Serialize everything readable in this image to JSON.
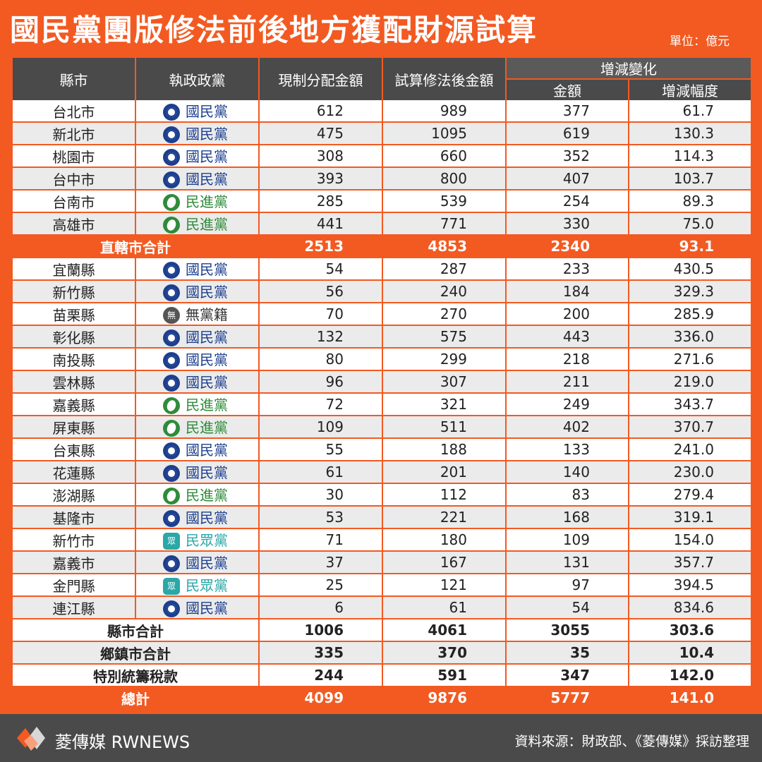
{
  "title": "國民黨團版修法前後地方獲配財源試算",
  "unit": "單位：億元",
  "headers": {
    "city": "縣市",
    "party": "執政政黨",
    "current": "現制分配金額",
    "after": "試算修法後金額",
    "change_group": "增減變化",
    "amount": "金額",
    "pct": "增減幅度"
  },
  "colors": {
    "orange": "#f25a22",
    "dark": "#4a4a4a",
    "kmt": "#1c3f8f",
    "dpp": "#2e8b3a",
    "tpp": "#2aa7a7",
    "ind": "#555555"
  },
  "municipalities": [
    {
      "name": "台北市",
      "party": "國民黨",
      "ptype": "kmt",
      "current": "612",
      "after": "989",
      "amount": "377",
      "pct": "61.7"
    },
    {
      "name": "新北市",
      "party": "國民黨",
      "ptype": "kmt",
      "current": "475",
      "after": "1095",
      "amount": "619",
      "pct": "130.3"
    },
    {
      "name": "桃園市",
      "party": "國民黨",
      "ptype": "kmt",
      "current": "308",
      "after": "660",
      "amount": "352",
      "pct": "114.3"
    },
    {
      "name": "台中市",
      "party": "國民黨",
      "ptype": "kmt",
      "current": "393",
      "after": "800",
      "amount": "407",
      "pct": "103.7"
    },
    {
      "name": "台南市",
      "party": "民進黨",
      "ptype": "dpp",
      "current": "285",
      "after": "539",
      "amount": "254",
      "pct": "89.3"
    },
    {
      "name": "高雄市",
      "party": "民進黨",
      "ptype": "dpp",
      "current": "441",
      "after": "771",
      "amount": "330",
      "pct": "75.0"
    }
  ],
  "municipal_total": {
    "label": "直轄市合計",
    "current": "2513",
    "after": "4853",
    "amount": "2340",
    "pct": "93.1"
  },
  "counties": [
    {
      "name": "宜蘭縣",
      "party": "國民黨",
      "ptype": "kmt",
      "current": "54",
      "after": "287",
      "amount": "233",
      "pct": "430.5"
    },
    {
      "name": "新竹縣",
      "party": "國民黨",
      "ptype": "kmt",
      "current": "56",
      "after": "240",
      "amount": "184",
      "pct": "329.3"
    },
    {
      "name": "苗栗縣",
      "party": "無黨籍",
      "ptype": "ind",
      "current": "70",
      "after": "270",
      "amount": "200",
      "pct": "285.9"
    },
    {
      "name": "彰化縣",
      "party": "國民黨",
      "ptype": "kmt",
      "current": "132",
      "after": "575",
      "amount": "443",
      "pct": "336.0"
    },
    {
      "name": "南投縣",
      "party": "國民黨",
      "ptype": "kmt",
      "current": "80",
      "after": "299",
      "amount": "218",
      "pct": "271.6"
    },
    {
      "name": "雲林縣",
      "party": "國民黨",
      "ptype": "kmt",
      "current": "96",
      "after": "307",
      "amount": "211",
      "pct": "219.0"
    },
    {
      "name": "嘉義縣",
      "party": "民進黨",
      "ptype": "dpp",
      "current": "72",
      "after": "321",
      "amount": "249",
      "pct": "343.7"
    },
    {
      "name": "屏東縣",
      "party": "民進黨",
      "ptype": "dpp",
      "current": "109",
      "after": "511",
      "amount": "402",
      "pct": "370.7"
    },
    {
      "name": "台東縣",
      "party": "國民黨",
      "ptype": "kmt",
      "current": "55",
      "after": "188",
      "amount": "133",
      "pct": "241.0"
    },
    {
      "name": "花蓮縣",
      "party": "國民黨",
      "ptype": "kmt",
      "current": "61",
      "after": "201",
      "amount": "140",
      "pct": "230.0"
    },
    {
      "name": "澎湖縣",
      "party": "民進黨",
      "ptype": "dpp",
      "current": "30",
      "after": "112",
      "amount": "83",
      "pct": "279.4"
    },
    {
      "name": "基隆市",
      "party": "國民黨",
      "ptype": "kmt",
      "current": "53",
      "after": "221",
      "amount": "168",
      "pct": "319.1"
    },
    {
      "name": "新竹市",
      "party": "民眾黨",
      "ptype": "tpp",
      "current": "71",
      "after": "180",
      "amount": "109",
      "pct": "154.0"
    },
    {
      "name": "嘉義市",
      "party": "國民黨",
      "ptype": "kmt",
      "current": "37",
      "after": "167",
      "amount": "131",
      "pct": "357.7"
    },
    {
      "name": "金門縣",
      "party": "民眾黨",
      "ptype": "tpp",
      "current": "25",
      "after": "121",
      "amount": "97",
      "pct": "394.5"
    },
    {
      "name": "連江縣",
      "party": "國民黨",
      "ptype": "kmt",
      "current": "6",
      "after": "61",
      "amount": "54",
      "pct": "834.6"
    }
  ],
  "summaries": [
    {
      "label": "縣市合計",
      "current": "1006",
      "after": "4061",
      "amount": "3055",
      "pct": "303.6"
    },
    {
      "label": "鄉鎮市合計",
      "current": "335",
      "after": "370",
      "amount": "35",
      "pct": "10.4"
    },
    {
      "label": "特別統籌稅款",
      "current": "244",
      "after": "591",
      "amount": "347",
      "pct": "142.0"
    }
  ],
  "grand_total": {
    "label": "總計",
    "current": "4099",
    "after": "9876",
    "amount": "5777",
    "pct": "141.0"
  },
  "icon_glyphs": {
    "ind": "無",
    "tpp": "眾"
  },
  "footer": {
    "brand": "菱傳媒 RWNEWS",
    "logo_icon": "rwnews-logo-icon",
    "source": "資料來源：財政部、《菱傳媒》採訪整理"
  }
}
